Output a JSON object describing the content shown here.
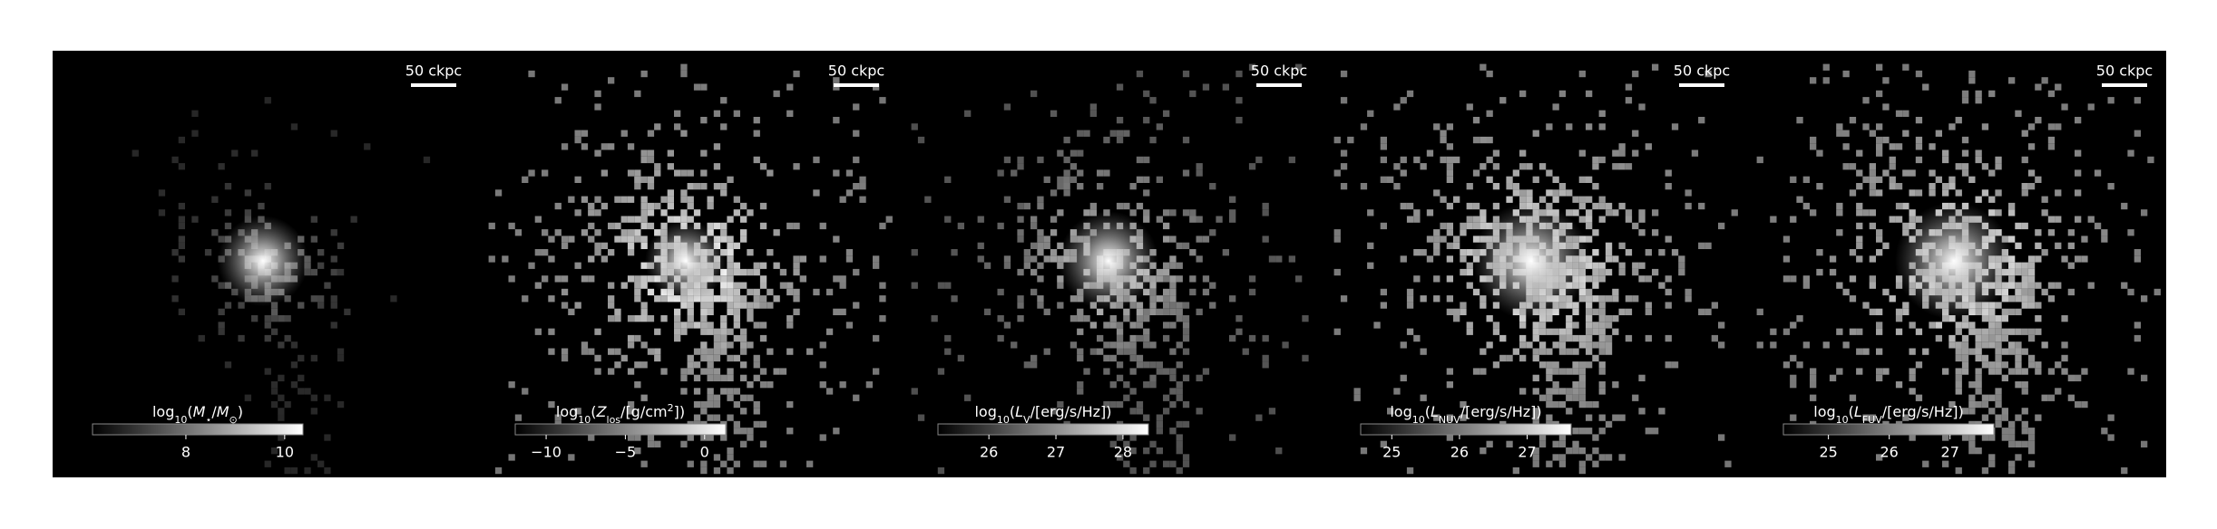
{
  "panels": [
    {
      "scale_bar": "50 ckpc",
      "colorbar": {
        "label": [
          {
            "text": "log"
          },
          {
            "text": "10",
            "sub": true
          },
          {
            "text": "("
          },
          {
            "text": "M",
            "italic": true
          },
          {
            "text": "⋆",
            "sub": true
          },
          {
            "text": "/"
          },
          {
            "text": "M",
            "italic": true
          },
          {
            "text": "⊙",
            "sub": true
          },
          {
            "text": ")"
          }
        ],
        "clim": [
          6.11,
          10.37
        ],
        "ticks": [
          8,
          10
        ]
      }
    },
    {
      "scale_bar": "50 ckpc",
      "colorbar": {
        "label": [
          {
            "text": "log"
          },
          {
            "text": "10",
            "sub": true
          },
          {
            "text": "("
          },
          {
            "text": "Z",
            "italic": true
          },
          {
            "text": "los",
            "sub": true
          },
          {
            "text": "/[g/cm"
          },
          {
            "text": "2",
            "sup": true
          },
          {
            "text": "])"
          }
        ],
        "clim": [
          -11.95,
          1.33
        ],
        "ticks": [
          {
            "value": -10,
            "label": "−10"
          },
          {
            "value": -5,
            "label": "−5"
          },
          0
        ]
      }
    },
    {
      "scale_bar": "50 ckpc",
      "colorbar": {
        "label": [
          {
            "text": "log"
          },
          {
            "text": "10",
            "sub": true
          },
          {
            "text": "("
          },
          {
            "text": "L",
            "italic": true
          },
          {
            "text": "V",
            "sub": true
          },
          {
            "text": "/[erg/s/Hz])"
          }
        ],
        "clim": [
          25.24,
          28.38
        ],
        "ticks": [
          26,
          27,
          28
        ]
      }
    },
    {
      "scale_bar": "50 ckpc",
      "colorbar": {
        "label": [
          {
            "text": "log"
          },
          {
            "text": "10",
            "sub": true
          },
          {
            "text": "("
          },
          {
            "text": "L",
            "italic": true
          },
          {
            "text": "NUV",
            "sub": true
          },
          {
            "text": "/[erg/s/Hz])"
          }
        ],
        "clim": [
          24.54,
          27.65
        ],
        "ticks": [
          25,
          26,
          27
        ]
      }
    },
    {
      "scale_bar": "50 ckpc",
      "colorbar": {
        "label": [
          {
            "text": "log"
          },
          {
            "text": "10",
            "sub": true
          },
          {
            "text": "("
          },
          {
            "text": "L",
            "italic": true
          },
          {
            "text": "FUV",
            "sub": true
          },
          {
            "text": "/[erg/s/Hz])"
          }
        ],
        "clim": [
          24.26,
          27.72
        ],
        "ticks": [
          25,
          26,
          27
        ]
      }
    }
  ]
}
